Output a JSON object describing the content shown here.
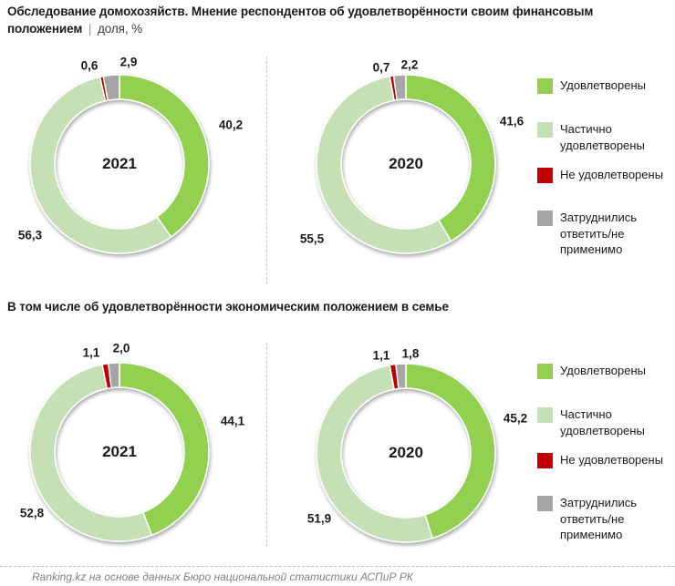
{
  "header": {
    "title_bold": "Обследование домохозяйств. Мнение респондентов об удовлетворённости своим финансовым положением",
    "separator": "|",
    "unit": "доля, %"
  },
  "section_family": {
    "title": "В том числе об удовлетворённости экономическим положением в семье"
  },
  "legend": {
    "position": "right",
    "items": [
      {
        "key": "satisfied",
        "label": "Удовлетворены",
        "color": "#92D050"
      },
      {
        "key": "partially-satisfied",
        "label": "Частично удовлетворены",
        "color": "#C5E0B4"
      },
      {
        "key": "not-satisfied",
        "label": "Не удовлетворены",
        "color": "#C00000"
      },
      {
        "key": "undecided",
        "label": "Затруднились ответить/не применимо",
        "color": "#A6A6A6"
      }
    ]
  },
  "footer": {
    "source": "Ranking.kz на основе данных Бюро национальной статистики АСПиР РК"
  },
  "chart_data": [
    {
      "type": "pie",
      "donut": true,
      "start_angle": 0,
      "direction": "clockwise",
      "group": "Мнение об удовлетворённости своим финансовым положением",
      "title": "2021",
      "center_label": "2021",
      "unit": "%",
      "categories": [
        "Удовлетворены",
        "Частично удовлетворены",
        "Не удовлетворены",
        "Затруднились ответить/не применимо"
      ],
      "values": [
        40.2,
        56.3,
        0.6,
        2.9
      ],
      "labels": [
        "40,2",
        "56,3",
        "0,6",
        "2,9"
      ]
    },
    {
      "type": "pie",
      "donut": true,
      "start_angle": 0,
      "direction": "clockwise",
      "group": "Мнение об удовлетворённости своим финансовым положением",
      "title": "2020",
      "center_label": "2020",
      "unit": "%",
      "categories": [
        "Удовлетворены",
        "Частично удовлетворены",
        "Не удовлетворены",
        "Затруднились ответить/не применимо"
      ],
      "values": [
        41.6,
        55.5,
        0.7,
        2.2
      ],
      "labels": [
        "41,6",
        "55,5",
        "0,7",
        "2,2"
      ]
    },
    {
      "type": "pie",
      "donut": true,
      "start_angle": 0,
      "direction": "clockwise",
      "group": "Об удовлетворённости экономическим положением в семье",
      "title": "2021",
      "center_label": "2021",
      "unit": "%",
      "categories": [
        "Удовлетворены",
        "Частично удовлетворены",
        "Не удовлетворены",
        "Затруднились ответить/не применимо"
      ],
      "values": [
        44.1,
        52.8,
        1.1,
        2.0
      ],
      "labels": [
        "44,1",
        "52,8",
        "1,1",
        "2,0"
      ]
    },
    {
      "type": "pie",
      "donut": true,
      "start_angle": 0,
      "direction": "clockwise",
      "group": "Об удовлетворённости экономическим положением в семье",
      "title": "2020",
      "center_label": "2020",
      "unit": "%",
      "categories": [
        "Удовлетворены",
        "Частично удовлетворены",
        "Не удовлетворены",
        "Затруднились ответить/не применимо"
      ],
      "values": [
        45.2,
        51.9,
        1.1,
        1.8
      ],
      "labels": [
        "45,2",
        "51,9",
        "1,1",
        "1,8"
      ]
    }
  ]
}
